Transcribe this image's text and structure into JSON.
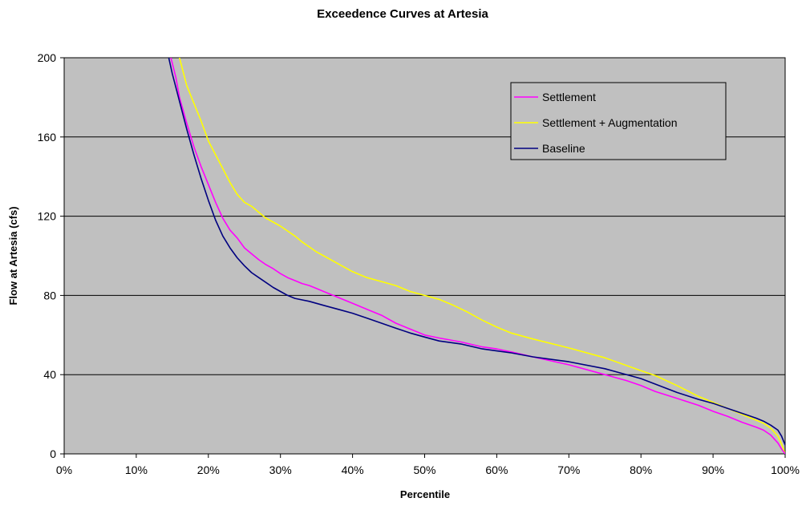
{
  "chart_data": {
    "type": "line",
    "title": "Exceedence Curves at Artesia",
    "xlabel": "Percentile",
    "ylabel": "Flow at Artesia (cfs)",
    "xlim": [
      0,
      100
    ],
    "ylim": [
      0,
      200
    ],
    "x_ticks": [
      "0%",
      "10%",
      "20%",
      "30%",
      "40%",
      "50%",
      "60%",
      "70%",
      "80%",
      "90%",
      "100%"
    ],
    "y_ticks": [
      "0",
      "40",
      "80",
      "120",
      "160",
      "200"
    ],
    "grid": "horizontal",
    "plot_background": "#c0c0c0",
    "legend_position": "top-right",
    "series": [
      {
        "name": "Settlement",
        "color": "#ff00ff",
        "x": [
          14.8,
          15.5,
          16,
          17,
          18,
          19,
          20,
          21,
          22,
          23,
          24,
          25,
          26,
          27,
          28,
          29,
          30,
          31,
          32,
          33,
          34,
          35,
          36,
          38,
          40,
          42,
          44,
          46,
          48,
          50,
          52,
          55,
          58,
          60,
          62,
          65,
          70,
          75,
          78,
          80,
          82,
          85,
          88,
          90,
          92,
          94,
          96,
          97,
          98,
          99,
          99.5,
          100
        ],
        "y": [
          200,
          190,
          180,
          167,
          155,
          145,
          136,
          127,
          119,
          113,
          109,
          104,
          101,
          98,
          95.5,
          93.5,
          91,
          89,
          87.5,
          86,
          85,
          83.5,
          82,
          79,
          76,
          73,
          70,
          66,
          63,
          60,
          58.5,
          56.5,
          54,
          53,
          51.5,
          49,
          45,
          40,
          37,
          34.5,
          31.5,
          28,
          24.5,
          21.5,
          19,
          16,
          13.5,
          12,
          9.5,
          5.5,
          2.5,
          0
        ]
      },
      {
        "name": "Settlement + Augmentation",
        "color": "#ffff00",
        "x": [
          16,
          17,
          18,
          19,
          20,
          21,
          22,
          23,
          24,
          25,
          26,
          27,
          28,
          29,
          30,
          31,
          32,
          33,
          34,
          35,
          36,
          38,
          40,
          42,
          44,
          46,
          48,
          50,
          52,
          54,
          56,
          58,
          60,
          62,
          65,
          70,
          75,
          80,
          82,
          85,
          88,
          90,
          92,
          94,
          96,
          97,
          98,
          99,
          99.5,
          100
        ],
        "y": [
          200,
          186,
          177,
          168,
          158,
          151,
          144,
          137,
          131,
          127,
          125,
          122,
          119,
          117,
          115,
          112.5,
          110,
          107,
          104.5,
          102,
          100,
          96,
          92,
          89,
          87,
          85,
          82,
          80,
          78,
          75,
          71.5,
          67.5,
          64,
          61,
          58,
          53.5,
          48.5,
          42,
          39.5,
          34.5,
          29,
          26,
          23,
          20,
          17,
          15.5,
          13,
          9,
          5,
          0
        ]
      },
      {
        "name": "Baseline",
        "color": "#000080",
        "x": [
          14.5,
          15,
          16,
          17,
          18,
          19,
          20,
          21,
          22,
          23,
          24,
          25,
          26,
          27,
          28,
          29,
          30,
          31,
          32,
          34,
          36,
          38,
          40,
          42,
          44,
          46,
          48,
          50,
          52,
          55,
          58,
          60,
          62,
          65,
          68,
          70,
          75,
          80,
          85,
          88,
          90,
          92,
          94,
          96,
          97,
          98,
          99,
          99.5,
          100
        ],
        "y": [
          200,
          192,
          178,
          164,
          151,
          139,
          128,
          118,
          110,
          104,
          99,
          95,
          91.5,
          89,
          86.5,
          84,
          82,
          80,
          78.5,
          77,
          75,
          73,
          71,
          68.5,
          66,
          63.5,
          61,
          59,
          57,
          55.5,
          53,
          52,
          51,
          49,
          47.5,
          46.5,
          43,
          38,
          31,
          27.5,
          25.5,
          23,
          20.5,
          18,
          16.5,
          14.5,
          12,
          9,
          4.5
        ]
      }
    ]
  }
}
